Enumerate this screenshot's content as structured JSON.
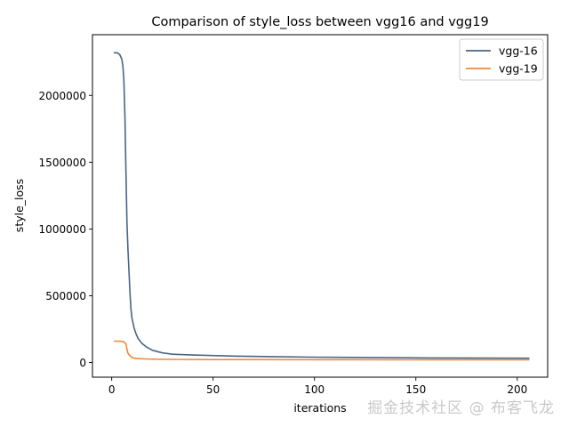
{
  "chart_data": {
    "type": "line",
    "title": "Comparison of style_loss between vgg16 and vgg19",
    "xlabel": "iterations",
    "ylabel": "style_loss",
    "xlim": [
      -9.5,
      215
    ],
    "ylim": [
      -110000,
      2455000
    ],
    "xticks": [
      0,
      50,
      100,
      150,
      200
    ],
    "xtick_labels": [
      "0",
      "50",
      "100",
      "150",
      "200"
    ],
    "yticks": [
      0,
      500000,
      1000000,
      1500000,
      2000000
    ],
    "ytick_labels": [
      "0",
      "500000",
      "1000000",
      "1500000",
      "2000000"
    ],
    "grid": false,
    "legend": "top-right",
    "series": [
      {
        "name": "vgg-16",
        "color": "#4a6587",
        "x": [
          1,
          2,
          3,
          4,
          5,
          5.5,
          6,
          6.5,
          7,
          7.5,
          8,
          8.5,
          9,
          9.5,
          10,
          11,
          12,
          13,
          14,
          15,
          17,
          20,
          25,
          30,
          40,
          50,
          60,
          80,
          100,
          130,
          160,
          206
        ],
        "y": [
          2320000,
          2320000,
          2318000,
          2305000,
          2270000,
          2220000,
          2120000,
          1850000,
          1450000,
          1050000,
          850000,
          680000,
          520000,
          400000,
          330000,
          260000,
          215000,
          180000,
          160000,
          142000,
          118000,
          92000,
          72000,
          62000,
          56000,
          52000,
          48000,
          44000,
          40000,
          37000,
          34000,
          32000
        ]
      },
      {
        "name": "vgg-19",
        "color": "#ee8a3e",
        "x": [
          1,
          2,
          3,
          4,
          5,
          6,
          7,
          7.5,
          8,
          8.5,
          9,
          10,
          11,
          13,
          15,
          17,
          20,
          30,
          50,
          100,
          150,
          206
        ],
        "y": [
          160000,
          160000,
          160000,
          159000,
          158000,
          155000,
          140000,
          100000,
          70000,
          58000,
          50000,
          38000,
          32000,
          29000,
          28000,
          26500,
          25000,
          23000,
          22000,
          21000,
          20500,
          20000
        ]
      }
    ]
  },
  "watermark": "掘金技术社区 @ 布客飞龙"
}
